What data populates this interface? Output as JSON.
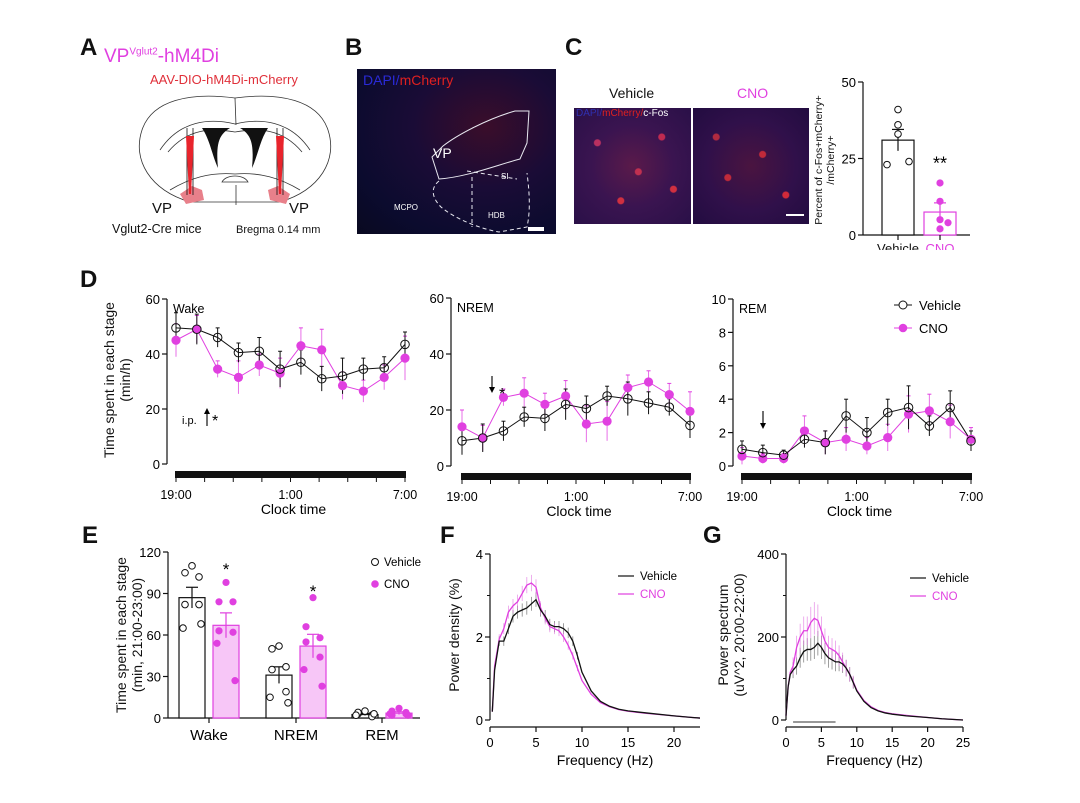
{
  "colors": {
    "magenta": "#e040e0",
    "magenta_dark": "#c020c0",
    "magenta_fill": "#f7c6f7",
    "vehicle": "#111111",
    "red_label": "#e0303a",
    "cherry": "#e8808a",
    "brain_bg": "#0c0c2a"
  },
  "panelA": {
    "letter": "A",
    "title_main": "VP",
    "title_sup": "Vglut2",
    "title_tail": "-hM4Di",
    "virus": "AAV-DIO-hM4Di-mCherry",
    "vp_left": "VP",
    "vp_right": "VP",
    "mouse_line": "Vglut2-Cre mice",
    "bregma": "Bregma 0.14 mm"
  },
  "panelB": {
    "letter": "B",
    "stain_dapi": "DAPI/",
    "stain_mcherry": "mCherry",
    "region_vp": "VP",
    "region_si": "SI",
    "region_mcpo": "MCPO",
    "region_hdb": "HDB"
  },
  "panelC": {
    "letter": "C",
    "label_vehicle": "Vehicle",
    "label_cno": "CNO",
    "stain_dapi": "DAPI/",
    "stain_mcherry": "mCherry/",
    "stain_cfos": "c-Fos"
  },
  "chart_data": [
    {
      "id": "C-bar",
      "type": "bar",
      "title": "",
      "ylabel": "Percent of c-Fos+mCherry+ /mCherry+",
      "ylabel_line1": "Percent of c-Fos+mCherry+",
      "ylabel_line2": "/mCherry+",
      "ylim": [
        0,
        50
      ],
      "yticks": [
        0,
        25,
        50
      ],
      "categories": [
        "Vehicle",
        "CNO"
      ],
      "means": [
        31,
        7.5
      ],
      "sem": [
        3.5,
        3.0
      ],
      "points": [
        [
          41,
          36,
          33,
          23,
          24
        ],
        [
          17,
          11,
          5,
          4,
          2
        ]
      ],
      "annotation": "**"
    },
    {
      "id": "D-wake",
      "type": "line",
      "stage_label": "Wake",
      "ylabel_line1": "Time spent in each stage",
      "ylabel_line2": "(min/h)",
      "xlabel": "Clock time",
      "ylim": [
        0,
        60
      ],
      "yticks": [
        0,
        20,
        40,
        60
      ],
      "xtick_labels": [
        "19:00",
        "1:00",
        "7:00"
      ],
      "x_hours": [
        0,
        1,
        2,
        3,
        4,
        5,
        6,
        7,
        8,
        9,
        10,
        11,
        12
      ],
      "series": [
        {
          "name": "Vehicle",
          "values": [
            49.5,
            49,
            46,
            40.5,
            41,
            34.5,
            37,
            31,
            32,
            34.5,
            35,
            43.5
          ],
          "err": [
            5.5,
            5.5,
            3.5,
            3.5,
            5,
            6.5,
            4.5,
            4.5,
            6.5,
            4,
            4,
            4.5
          ]
        },
        {
          "name": "CNO",
          "values": [
            45,
            49,
            34.5,
            31.5,
            36,
            33,
            43,
            41.5,
            28.5,
            26.5,
            31.5,
            38.5
          ],
          "err": [
            6,
            5,
            3,
            6,
            4,
            5.5,
            6.5,
            7.5,
            5,
            4,
            4.5,
            8
          ]
        }
      ],
      "arrow_label": "i.p.",
      "annotation": "*"
    },
    {
      "id": "D-nrem",
      "type": "line",
      "stage_label": "NREM",
      "xlabel": "Clock time",
      "ylim": [
        0,
        60
      ],
      "yticks": [
        0,
        20,
        40,
        60
      ],
      "xtick_labels": [
        "19:00",
        "1:00",
        "7:00"
      ],
      "series": [
        {
          "name": "Vehicle",
          "values": [
            9,
            10,
            12.5,
            17.5,
            17,
            22,
            20.5,
            25,
            24,
            22.5,
            21,
            14.5
          ],
          "err": [
            5,
            5,
            3.5,
            3.5,
            4.5,
            5.5,
            4.5,
            3.5,
            6,
            4,
            3,
            4.5
          ]
        },
        {
          "name": "CNO",
          "values": [
            14,
            10,
            24.5,
            26,
            22,
            25,
            15,
            16,
            28,
            30,
            25.5,
            19.5
          ],
          "err": [
            6,
            4.5,
            3,
            5.5,
            4,
            5.5,
            6.5,
            7,
            4.5,
            4,
            4,
            7
          ]
        }
      ],
      "annotation": "*"
    },
    {
      "id": "D-rem",
      "type": "line",
      "stage_label": "REM",
      "xlabel": "Clock time",
      "ylim": [
        0,
        10
      ],
      "yticks": [
        0,
        2,
        4,
        6,
        8,
        10
      ],
      "xtick_labels": [
        "19:00",
        "1:00",
        "7:00"
      ],
      "series": [
        {
          "name": "Vehicle",
          "values": [
            1.0,
            0.8,
            0.65,
            1.6,
            1.4,
            3.0,
            2.0,
            3.2,
            3.5,
            2.4,
            3.5,
            1.5
          ],
          "err": [
            0.5,
            0.45,
            0.3,
            0.5,
            0.7,
            1.0,
            0.9,
            0.8,
            1.3,
            0.6,
            1.0,
            0.6
          ]
        },
        {
          "name": "CNO",
          "values": [
            0.6,
            0.45,
            0.45,
            2.1,
            1.4,
            1.6,
            1.2,
            1.7,
            3.1,
            3.3,
            2.65,
            1.6
          ],
          "err": [
            0.5,
            0.3,
            0.3,
            0.9,
            0.7,
            0.7,
            0.5,
            0.8,
            1.1,
            1.0,
            1.0,
            0.7
          ]
        }
      ],
      "legend": [
        "Vehicle",
        "CNO"
      ],
      "legend_position": "top-right"
    },
    {
      "id": "E",
      "type": "bar",
      "ylabel_line1": "Time spent in each stage",
      "ylabel_line2": "(min, 21:00-23:00)",
      "ylim": [
        0,
        120
      ],
      "yticks": [
        0,
        30,
        60,
        90,
        120
      ],
      "categories": [
        "Wake",
        "NREM",
        "REM"
      ],
      "series": [
        {
          "name": "Vehicle",
          "means": [
            87,
            31,
            2.5
          ],
          "sem": [
            7.5,
            6,
            0.7
          ],
          "points": [
            [
              110,
              105,
              102,
              82,
              82,
              65,
              68
            ],
            [
              52,
              50,
              37,
              35,
              19,
              15,
              11
            ],
            [
              5,
              3,
              2,
              4,
              1,
              2,
              3
            ]
          ]
        },
        {
          "name": "CNO",
          "means": [
            67,
            52,
            3.5
          ],
          "sem": [
            9,
            8.5,
            1
          ],
          "points": [
            [
              98,
              84,
              84,
              63,
              62,
              54,
              27
            ],
            [
              87,
              66,
              58,
              55,
              44,
              35,
              23
            ],
            [
              7,
              5,
              3,
              2,
              4,
              3,
              2
            ]
          ]
        }
      ],
      "annotations": [
        "*",
        "*",
        ""
      ],
      "legend": [
        "Vehicle",
        "CNO"
      ],
      "legend_position": "top-right"
    },
    {
      "id": "F",
      "type": "line",
      "xlabel": "Frequency (Hz)",
      "ylabel": "Power density (%)",
      "xlim": [
        0,
        25
      ],
      "ylim": [
        0,
        4
      ],
      "xticks": [
        0,
        5,
        10,
        15,
        20,
        25
      ],
      "yticks": [
        0,
        2,
        4
      ],
      "ytick_labels": [
        "0",
        "2",
        "4"
      ],
      "x": [
        0.25,
        0.5,
        1,
        1.5,
        2,
        2.5,
        3,
        3.5,
        4,
        4.5,
        5,
        5.5,
        6,
        6.5,
        7,
        7.5,
        8,
        8.5,
        9,
        9.5,
        10,
        11,
        12,
        13,
        14,
        15,
        17,
        20,
        22,
        25
      ],
      "series": [
        {
          "name": "Vehicle",
          "values": [
            0.2,
            1.2,
            1.9,
            1.9,
            2.2,
            2.5,
            2.6,
            2.65,
            2.7,
            2.8,
            2.9,
            2.65,
            2.5,
            2.3,
            2.25,
            2.25,
            2.2,
            2.1,
            1.9,
            1.55,
            1.15,
            0.7,
            0.45,
            0.33,
            0.26,
            0.22,
            0.17,
            0.1,
            0.06,
            0.01
          ]
        },
        {
          "name": "CNO",
          "values": [
            0.2,
            1.3,
            1.95,
            2.2,
            2.6,
            2.75,
            2.85,
            3.05,
            3.25,
            3.3,
            3.2,
            2.7,
            2.45,
            2.25,
            2.2,
            2.15,
            2.0,
            1.8,
            1.55,
            1.25,
            0.95,
            0.62,
            0.42,
            0.32,
            0.25,
            0.21,
            0.16,
            0.1,
            0.06,
            0.01
          ]
        }
      ],
      "legend": [
        "Vehicle",
        "CNO"
      ],
      "legend_position": "top-right"
    },
    {
      "id": "G",
      "type": "line",
      "xlabel": "Frequency (Hz)",
      "ylabel_line1": "Power spectrum",
      "ylabel_line2": "(uV^2, 20:00-22:00)",
      "xlim": [
        0,
        25
      ],
      "ylim": [
        0,
        400
      ],
      "xticks": [
        0,
        5,
        10,
        15,
        20,
        25
      ],
      "yticks": [
        0,
        200,
        400
      ],
      "x": [
        0,
        0.3,
        0.6,
        1,
        1.5,
        2,
        2.5,
        3,
        3.5,
        4,
        4.5,
        5,
        5.5,
        6,
        6.5,
        7,
        7.5,
        8,
        8.5,
        9,
        9.5,
        10,
        11,
        12,
        13,
        14,
        15,
        17,
        20,
        22,
        25
      ],
      "series": [
        {
          "name": "Vehicle",
          "values": [
            10,
            80,
            110,
            120,
            130,
            150,
            165,
            170,
            170,
            175,
            185,
            175,
            160,
            150,
            145,
            140,
            140,
            135,
            125,
            110,
            90,
            70,
            45,
            30,
            22,
            17,
            14,
            10,
            6,
            3,
            0
          ]
        },
        {
          "name": "CNO",
          "values": [
            10,
            80,
            115,
            130,
            175,
            200,
            215,
            215,
            235,
            245,
            240,
            215,
            190,
            175,
            170,
            165,
            155,
            140,
            125,
            110,
            92,
            72,
            47,
            32,
            23,
            18,
            15,
            11,
            6,
            3,
            0
          ]
        }
      ],
      "sig_bar_hz": [
        1,
        7
      ],
      "legend": [
        "Vehicle",
        "CNO"
      ],
      "legend_position": "top-right"
    }
  ],
  "panelD": {
    "letter": "D"
  },
  "panelE": {
    "letter": "E"
  },
  "panelF": {
    "letter": "F"
  },
  "panelG": {
    "letter": "G"
  }
}
